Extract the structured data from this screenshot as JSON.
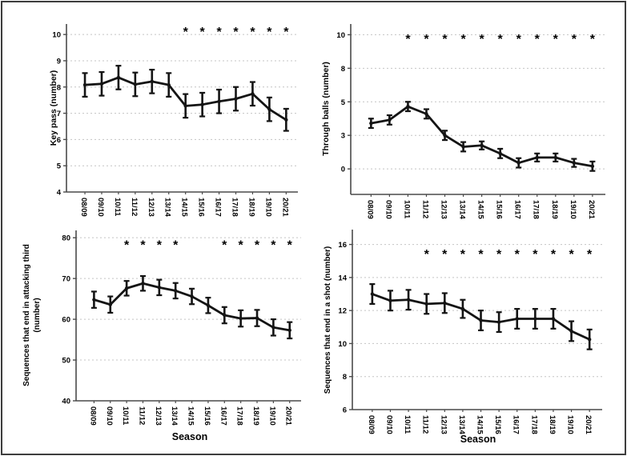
{
  "figure": {
    "background": "#ffffff",
    "border_color": "#3c3c3c"
  },
  "styles": {
    "line_color": "#141414",
    "grid_color": "#c4c4c4",
    "axis_color": "#4a4a4a",
    "text_color": "#000000",
    "significance_marker": "*"
  },
  "chart_data": [
    {
      "type": "line",
      "panel": "top-left",
      "ylabel": "Key pass (number)",
      "xlabel": "",
      "categories": [
        "08/09",
        "09/10",
        "10/11",
        "11/12",
        "12/13",
        "13/14",
        "14/15",
        "15/16",
        "16/17",
        "17/18",
        "18/19",
        "19/10",
        "20/21"
      ],
      "series": [
        {
          "name": "Key pass",
          "values": [
            8.08,
            8.12,
            8.36,
            8.1,
            8.21,
            8.08,
            7.28,
            7.33,
            7.45,
            7.55,
            7.74,
            7.15,
            6.75
          ],
          "errors": [
            0.45,
            0.45,
            0.45,
            0.45,
            0.45,
            0.45,
            0.45,
            0.45,
            0.45,
            0.45,
            0.45,
            0.45,
            0.42
          ]
        }
      ],
      "ylim": [
        4,
        10.4
      ],
      "yticks": [
        {
          "value": 4,
          "label": "4"
        },
        {
          "value": 5,
          "label": "5"
        },
        {
          "value": 6,
          "label": "6"
        },
        {
          "value": 7,
          "label": "7"
        },
        {
          "value": 8,
          "label": "8"
        },
        {
          "value": 9,
          "label": "9"
        },
        {
          "value": 10,
          "label": "10"
        }
      ],
      "grid": "dashed-horizontal",
      "legend": "none",
      "significant_indices": [
        6,
        7,
        8,
        9,
        10,
        11,
        12
      ],
      "marker_y": 10.18
    },
    {
      "type": "line",
      "panel": "top-right",
      "ylabel": "Through balls (number)",
      "xlabel": "",
      "categories": [
        "08/09",
        "09/10",
        "10/11",
        "11/12",
        "12/13",
        "13/14",
        "14/15",
        "15/16",
        "16/17",
        "17/18",
        "18/19",
        "19/10",
        "20/21"
      ],
      "series": [
        {
          "name": "Through balls",
          "values": [
            3.4,
            3.65,
            4.65,
            4.1,
            2.5,
            1.65,
            1.75,
            1.15,
            0.45,
            0.85,
            0.85,
            0.45,
            0.2
          ],
          "errors": [
            0.35,
            0.35,
            0.35,
            0.35,
            0.35,
            0.35,
            0.3,
            0.35,
            0.35,
            0.3,
            0.3,
            0.3,
            0.35
          ]
        }
      ],
      "ylim": [
        -1.9,
        10.8
      ],
      "yticks": [
        {
          "value": 0,
          "label": "0"
        },
        {
          "value": 2.5,
          "label": "3"
        },
        {
          "value": 5,
          "label": "5"
        },
        {
          "value": 7.5,
          "label": "8"
        },
        {
          "value": 10,
          "label": "10"
        }
      ],
      "grid": "dashed-horizontal",
      "legend": "none",
      "significant_indices": [
        2,
        3,
        4,
        5,
        6,
        7,
        8,
        9,
        10,
        11,
        12
      ],
      "marker_y": 9.85
    },
    {
      "type": "line",
      "panel": "bottom-left",
      "ylabel_lines": [
        "Sequences that end in attacking third",
        "(number)"
      ],
      "xlabel": "Season",
      "categories": [
        "08/09",
        "09/10",
        "10/11",
        "11/12",
        "12/13",
        "13/14",
        "14/15",
        "15/16",
        "16/17",
        "17/18",
        "18/19",
        "19/10",
        "20/21"
      ],
      "series": [
        {
          "name": "Sequences ending in attacking third",
          "values": [
            64.8,
            63.6,
            67.6,
            68.8,
            67.8,
            67.0,
            65.6,
            63.4,
            61.0,
            60.2,
            60.3,
            58.0,
            57.3
          ],
          "errors": [
            2.0,
            2.0,
            1.8,
            1.8,
            1.9,
            1.9,
            1.9,
            1.9,
            2.0,
            2.0,
            2.0,
            2.0,
            2.0
          ]
        }
      ],
      "ylim": [
        40,
        81.8
      ],
      "yticks": [
        {
          "value": 40,
          "label": "40"
        },
        {
          "value": 50,
          "label": "50"
        },
        {
          "value": 60,
          "label": "60"
        },
        {
          "value": 70,
          "label": "70"
        },
        {
          "value": 80,
          "label": "80"
        }
      ],
      "grid": "dashed-horizontal",
      "legend": "none",
      "significant_indices": [
        2,
        3,
        4,
        5,
        8,
        9,
        10,
        11,
        12
      ],
      "marker_y": 78.8
    },
    {
      "type": "line",
      "panel": "bottom-right",
      "ylabel": "Sequences that end in a shot (number)",
      "xlabel": "Season",
      "categories": [
        "08/09",
        "09/10",
        "10/11",
        "11/12",
        "12/13",
        "13/14",
        "14/15",
        "15/16",
        "16/17",
        "17/18",
        "18/19",
        "19/10",
        "20/21"
      ],
      "series": [
        {
          "name": "Sequences ending in a shot",
          "values": [
            13.0,
            12.6,
            12.65,
            12.4,
            12.45,
            12.1,
            11.4,
            11.3,
            11.5,
            11.5,
            11.5,
            10.75,
            10.25
          ],
          "errors": [
            0.6,
            0.6,
            0.6,
            0.6,
            0.6,
            0.55,
            0.6,
            0.6,
            0.6,
            0.6,
            0.6,
            0.6,
            0.6
          ]
        }
      ],
      "ylim": [
        6,
        16.9
      ],
      "yticks": [
        {
          "value": 6,
          "label": "6"
        },
        {
          "value": 8,
          "label": "8"
        },
        {
          "value": 10,
          "label": "10"
        },
        {
          "value": 12,
          "label": "12"
        },
        {
          "value": 14,
          "label": "14"
        },
        {
          "value": 16,
          "label": "16"
        }
      ],
      "grid": "dashed-horizontal",
      "legend": "none",
      "significant_indices": [
        3,
        4,
        5,
        6,
        7,
        8,
        9,
        10,
        11,
        12
      ],
      "marker_y": 15.55
    }
  ]
}
